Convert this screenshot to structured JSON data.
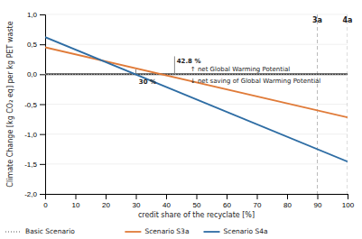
{
  "chart_data": {
    "type": "line",
    "xlabel": "credit share of the recyclate [%]",
    "ylabel": "Climate Change [kg CO₂ eq] per kg PET waste",
    "x": [
      0,
      100
    ],
    "series": [
      {
        "name": "Scenario S3a",
        "color": "#e07b39",
        "values": [
          0.45,
          -0.72
        ]
      },
      {
        "name": "Scenario S4a",
        "color": "#2e6da4",
        "values": [
          0.62,
          -1.46
        ]
      }
    ],
    "hlines": [
      {
        "y": 0,
        "color": "#444444"
      },
      {
        "name": "Basic Scenario",
        "y": 0.0,
        "color": "#aaaaaa",
        "line_style": "dotted"
      }
    ],
    "vlines": [
      {
        "x": 90,
        "color": "#bbbbbb",
        "line_style": "dashed"
      },
      {
        "x": 100,
        "color": "#bbbbbb",
        "line_style": "dashed"
      }
    ],
    "segments": [
      {
        "x": 30,
        "y": [
          0,
          0.08
        ],
        "color": "#888888"
      },
      {
        "x": 42.8,
        "y": [
          0,
          0.3
        ],
        "color": "#888888"
      }
    ],
    "annotations": [
      {
        "text": "30 %",
        "x": 31,
        "y": -0.13
      },
      {
        "text": "42.8 %",
        "x": 43.5,
        "y": 0.22
      },
      {
        "text": "↑ net Global Warming Potential",
        "x": 48,
        "y": 0.08
      },
      {
        "text": "↓ net saving of Global Warming Potential",
        "x": 48,
        "y": -0.12
      },
      {
        "text": "3a",
        "x": 90,
        "y": 0.9
      },
      {
        "text": "4a",
        "x": 100,
        "y": 0.9
      }
    ],
    "xlim": [
      0,
      100
    ],
    "ylim": [
      -2,
      1
    ],
    "xticks": [
      0,
      10,
      20,
      30,
      40,
      50,
      60,
      70,
      80,
      90,
      100
    ],
    "yticks": [
      {
        "value": -2,
        "label": "-2,0"
      },
      {
        "value": -1.5,
        "label": "-1,5"
      },
      {
        "value": -1,
        "label": "-1,0"
      },
      {
        "value": -0.5,
        "label": "-0,5"
      },
      {
        "value": 0,
        "label": "0,0"
      },
      {
        "value": 0.5,
        "label": "0,5"
      },
      {
        "value": 1,
        "label": "1,0"
      }
    ],
    "grid": true,
    "legend": "bottom"
  }
}
